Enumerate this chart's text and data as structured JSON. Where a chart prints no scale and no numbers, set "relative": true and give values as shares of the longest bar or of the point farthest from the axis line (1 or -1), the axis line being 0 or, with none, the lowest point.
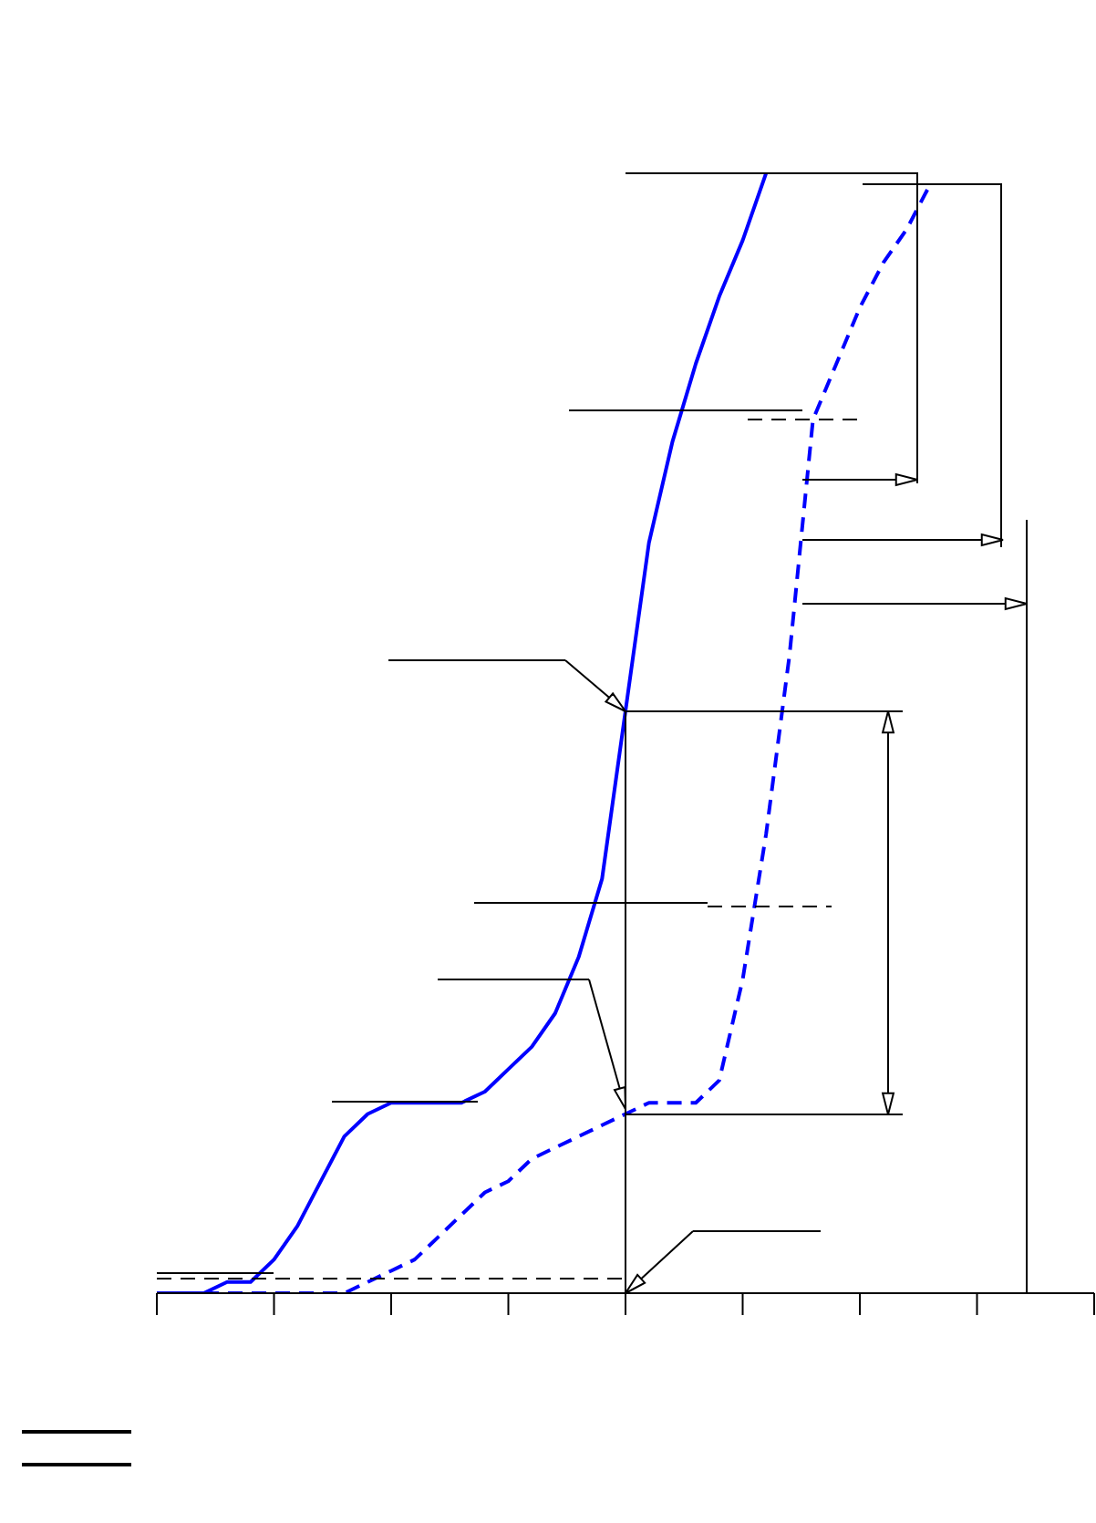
{
  "chart_data": {
    "type": "line",
    "relative": true,
    "categories": [
      null,
      null,
      null,
      null,
      null,
      null,
      null,
      null,
      null,
      null,
      null,
      null,
      null,
      null,
      null,
      null,
      null,
      null,
      null,
      null,
      null,
      null,
      null,
      null,
      null,
      null,
      null,
      null,
      null,
      null,
      null,
      null,
      null,
      null,
      null,
      null,
      null,
      null,
      null,
      null,
      null
    ],
    "series": [
      {
        "color": "#0000ff",
        "line_style": "solid",
        "values": [
          0,
          0,
          0,
          0.01,
          0.01,
          0.03,
          0.06,
          0.1,
          0.14,
          0.16,
          0.17,
          0.17,
          0.17,
          0.17,
          0.18,
          0.2,
          0.22,
          0.25,
          0.3,
          0.37,
          0.52,
          0.67,
          0.76,
          0.83,
          0.89,
          0.94,
          1,
          null,
          null,
          null,
          null,
          null,
          null,
          null,
          null,
          null,
          null,
          null,
          null,
          null,
          null
        ]
      },
      {
        "color": "#0000ff",
        "line_style": "dashed",
        "values": [
          0,
          0,
          0,
          0,
          0,
          0,
          0,
          0,
          0,
          0.01,
          0.02,
          0.03,
          0.05,
          0.07,
          0.09,
          0.1,
          0.12,
          0.13,
          0.14,
          0.15,
          0.16,
          0.17,
          0.17,
          0.17,
          0.19,
          0.28,
          0.41,
          0.57,
          0.78,
          0.83,
          0.88,
          0.92,
          0.95,
          0.99,
          null,
          null,
          null,
          null,
          null,
          null,
          null
        ]
      }
    ],
    "grid": false,
    "legend": false,
    "marker": "none"
  }
}
